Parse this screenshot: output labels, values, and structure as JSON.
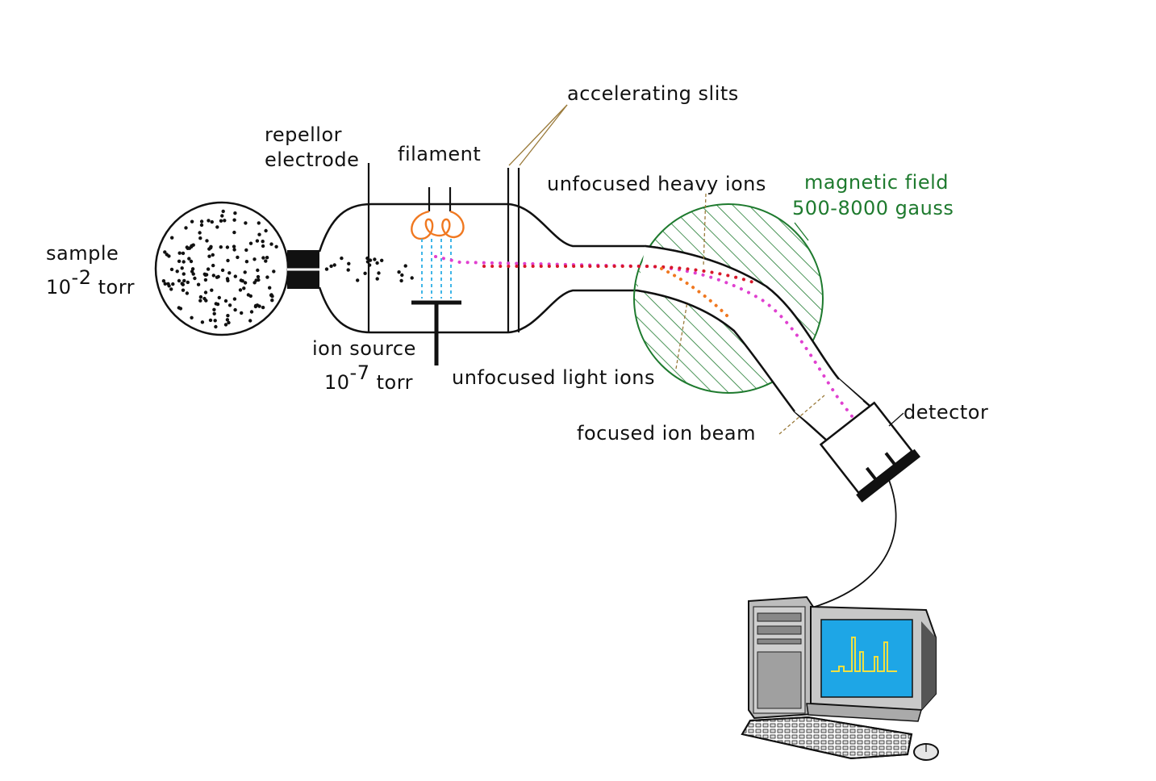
{
  "labels": {
    "sample": "sample",
    "sample_pressure_base": "10",
    "sample_pressure_exp": "-2",
    "sample_pressure_unit": " torr",
    "repellor_line1": "repellor",
    "repellor_line2": "electrode",
    "filament": "filament",
    "accelerating_slits": "accelerating slits",
    "unfocused_heavy_ions": "unfocused heavy ions",
    "magnetic_field_line1": "magnetic field",
    "magnetic_field_line2": "500-8000 gauss",
    "ion_source": "ion source",
    "ion_source_pressure_base": "10",
    "ion_source_pressure_exp": "-7",
    "ion_source_pressure_unit": " torr",
    "unfocused_light_ions": "unfocused light ions",
    "focused_ion_beam": "focused ion beam",
    "detector": "detector"
  },
  "colors": {
    "outline": "#111111",
    "magnetic_field": "#1e7a2e",
    "filament": "#f07820",
    "electron_beam": "#3fb6e8",
    "focused_beam": "#e040d0",
    "heavy_ions": "#d8182a",
    "light_ions": "#f07820",
    "monitor_screen": "#1ea6e6",
    "spectrum": "#f0e040",
    "leader_line": "#9a7a3a"
  }
}
